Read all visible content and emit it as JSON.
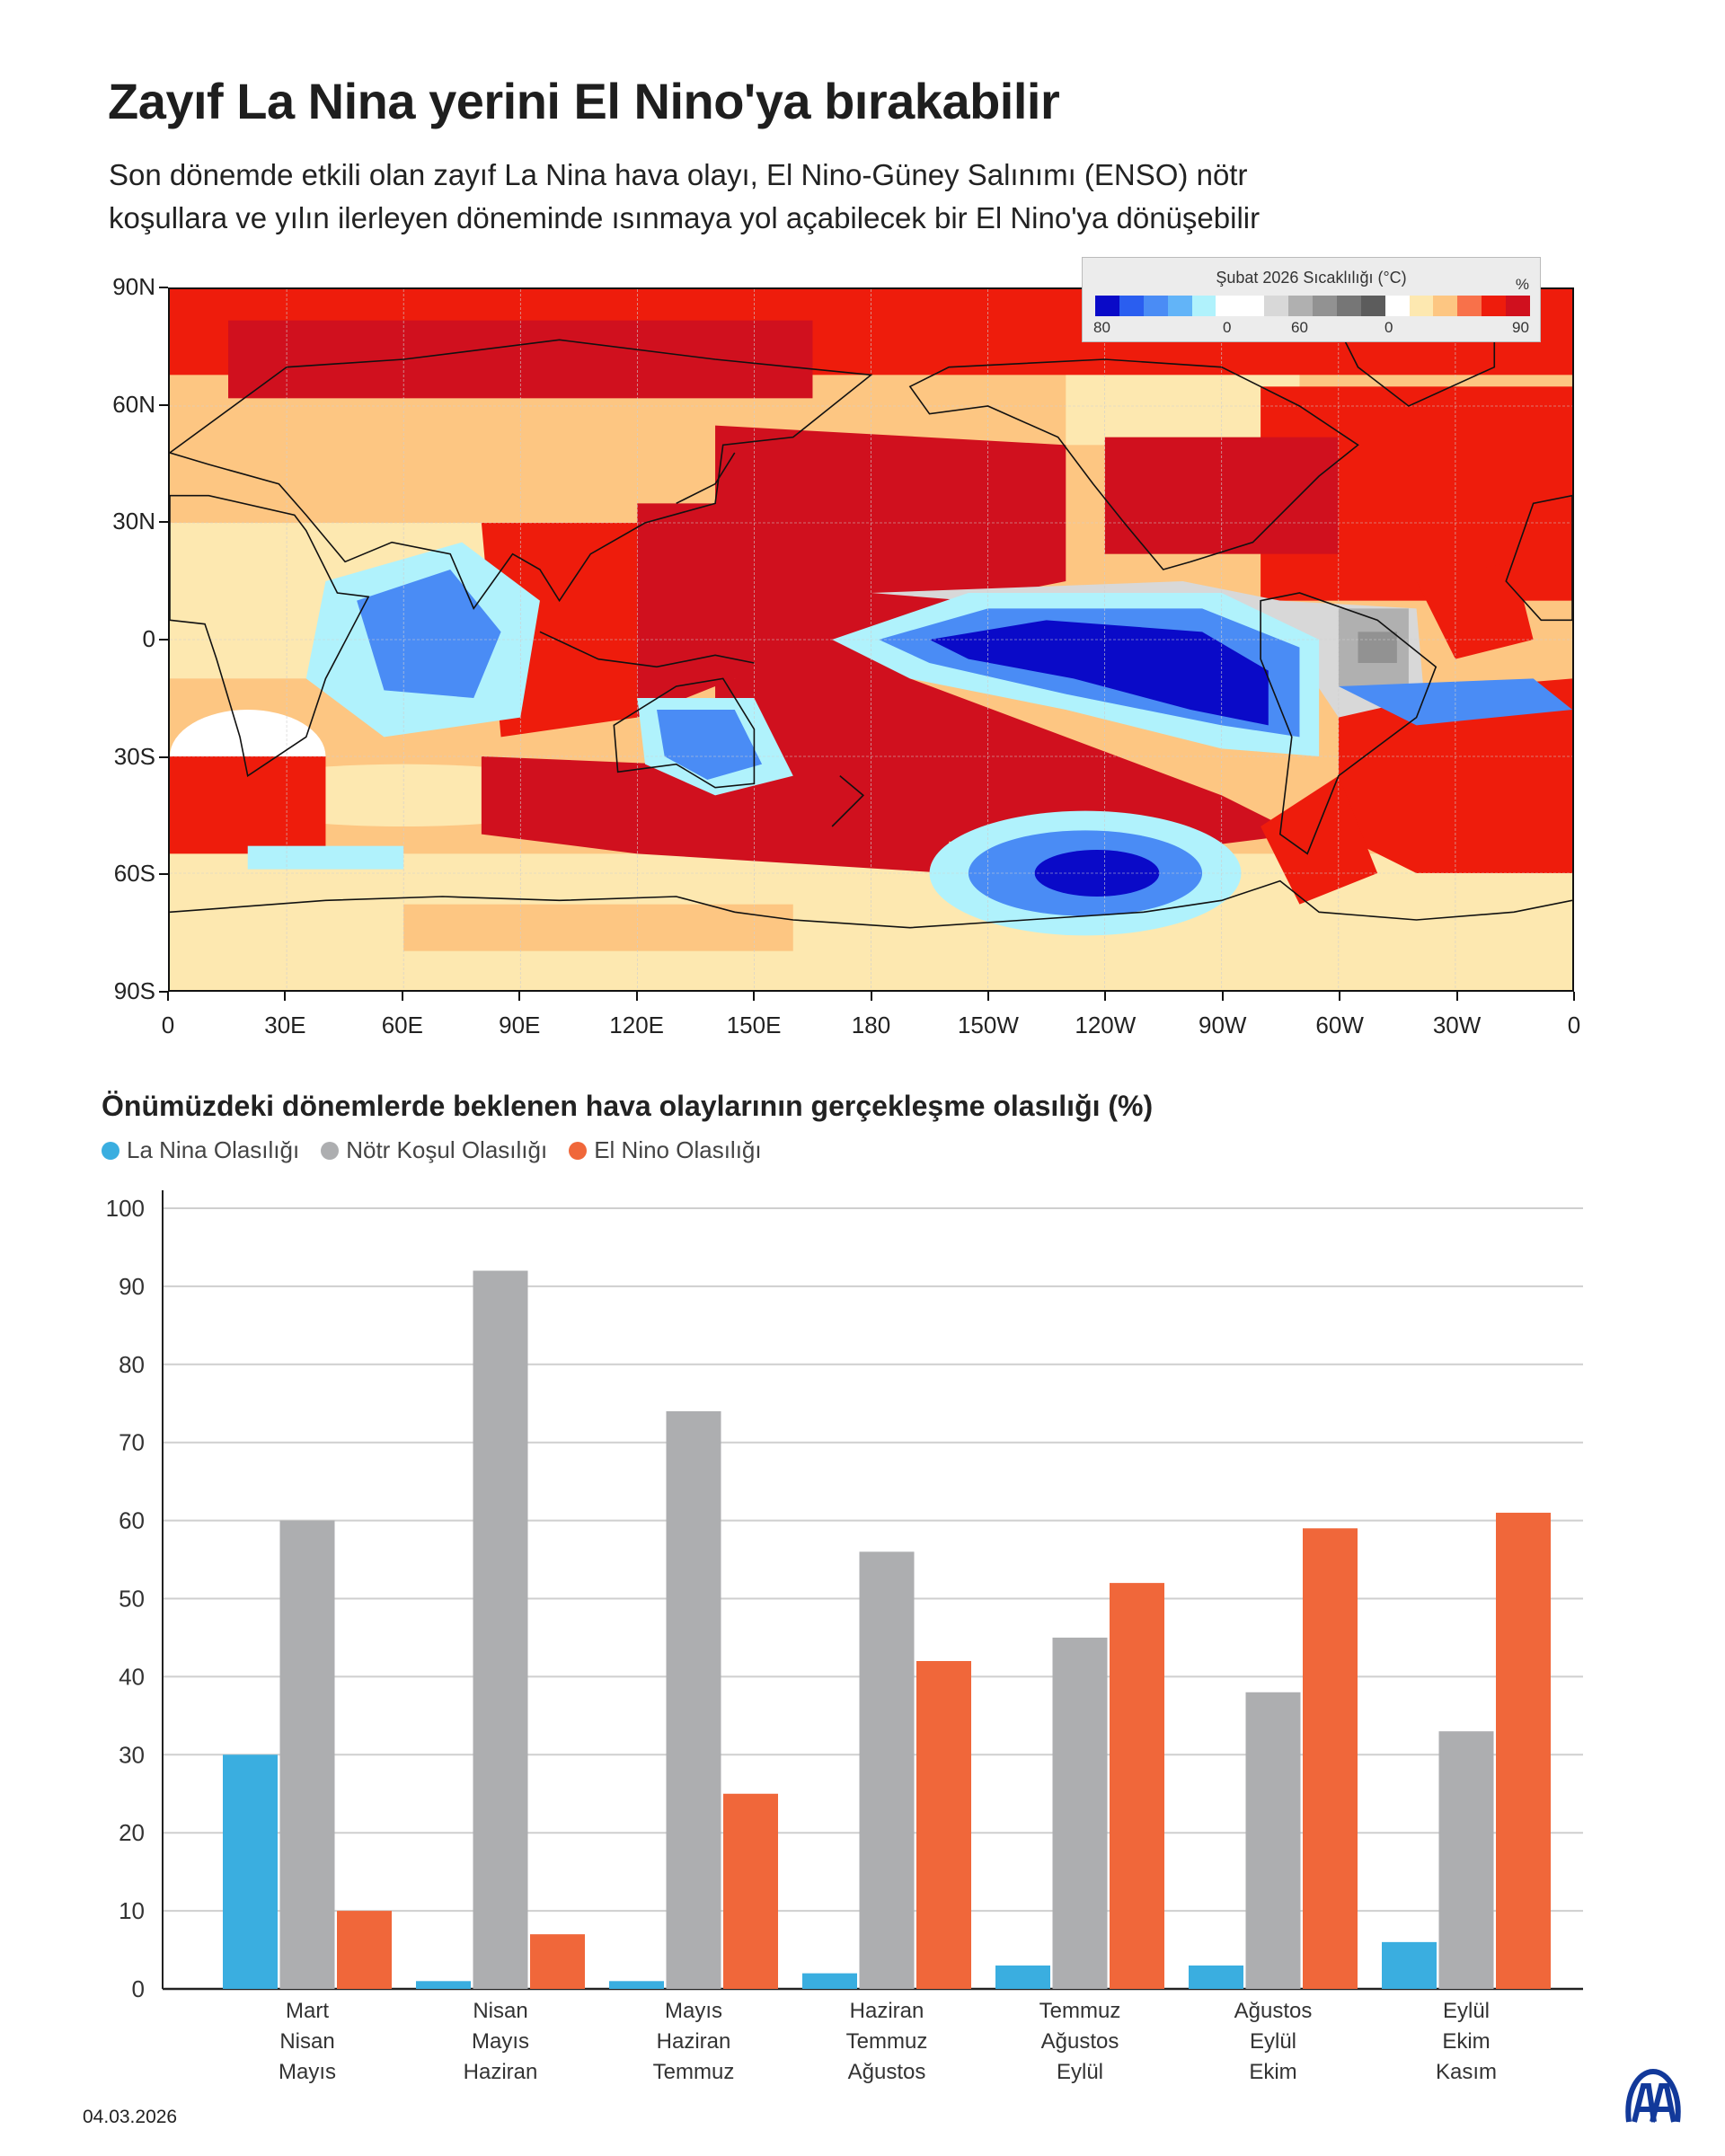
{
  "header": {
    "title": "Zayıf La Nina yerini El Nino'ya bırakabilir",
    "subtitle_lines": [
      "Son dönemde etkili olan zayıf La Nina hava olayı, El Nino-Güney Salınımı (ENSO) nötr",
      "koşullara ve yılın ilerleyen döneminde ısınmaya yol açabilecek bir El Nino'ya dönüşebilir"
    ]
  },
  "map": {
    "legend": {
      "title": "Şubat 2026  Sıcaklılığı (°C)",
      "unit": "%",
      "labels": [
        "80",
        "0",
        "60",
        "0",
        "90"
      ],
      "colors": [
        "#0a0ac8",
        "#2a5ef0",
        "#4a8cf5",
        "#62b4f8",
        "#b0f2fc",
        "#ffffff",
        "#ffffff",
        "#d8d8d8",
        "#b0b0b0",
        "#929292",
        "#767676",
        "#5c5c5c",
        "#ffffff",
        "#fde8b0",
        "#fdc682",
        "#f8714a",
        "#ee1c0c",
        "#d0101e"
      ]
    },
    "lat_labels": [
      "90N",
      "60N",
      "30N",
      "0",
      "30S",
      "60S",
      "90S"
    ],
    "lon_labels": [
      "0",
      "30E",
      "60E",
      "90E",
      "120E",
      "150E",
      "180",
      "150W",
      "120W",
      "90W",
      "60W",
      "30W",
      "0"
    ]
  },
  "chart_data": {
    "type": "bar",
    "title": "Önümüzdeki dönemlerde beklenen hava olaylarının gerçekleşme olasılığı (%)",
    "categories": [
      [
        "Mart",
        "Nisan",
        "Mayıs"
      ],
      [
        "Nisan",
        "Mayıs",
        "Haziran"
      ],
      [
        "Mayıs",
        "Haziran",
        "Temmuz"
      ],
      [
        "Haziran",
        "Temmuz",
        "Ağustos"
      ],
      [
        "Temmuz",
        "Ağustos",
        "Eylül"
      ],
      [
        "Ağustos",
        "Eylül",
        "Ekim"
      ],
      [
        "Eylül",
        "Ekim",
        "Kasım"
      ]
    ],
    "series": [
      {
        "name": "La Nina Olasılığı",
        "color": "#3aaee0",
        "values": [
          30,
          1,
          1,
          2,
          3,
          3,
          6
        ]
      },
      {
        "name": "Nötr Koşul Olasılığı",
        "color": "#adaeb0",
        "values": [
          60,
          92,
          74,
          56,
          45,
          38,
          33
        ]
      },
      {
        "name": "El Nino Olasılığı",
        "color": "#f0673a",
        "values": [
          10,
          7,
          25,
          42,
          52,
          59,
          61
        ]
      }
    ],
    "ylim": [
      0,
      100
    ],
    "yticks": [
      "0",
      "10",
      "20",
      "30",
      "40",
      "50",
      "60",
      "70",
      "80",
      "90",
      "100"
    ],
    "grid": true,
    "legend_position": "top-left"
  },
  "footer": {
    "date": "04.03.2026",
    "logo_text": "AA"
  }
}
